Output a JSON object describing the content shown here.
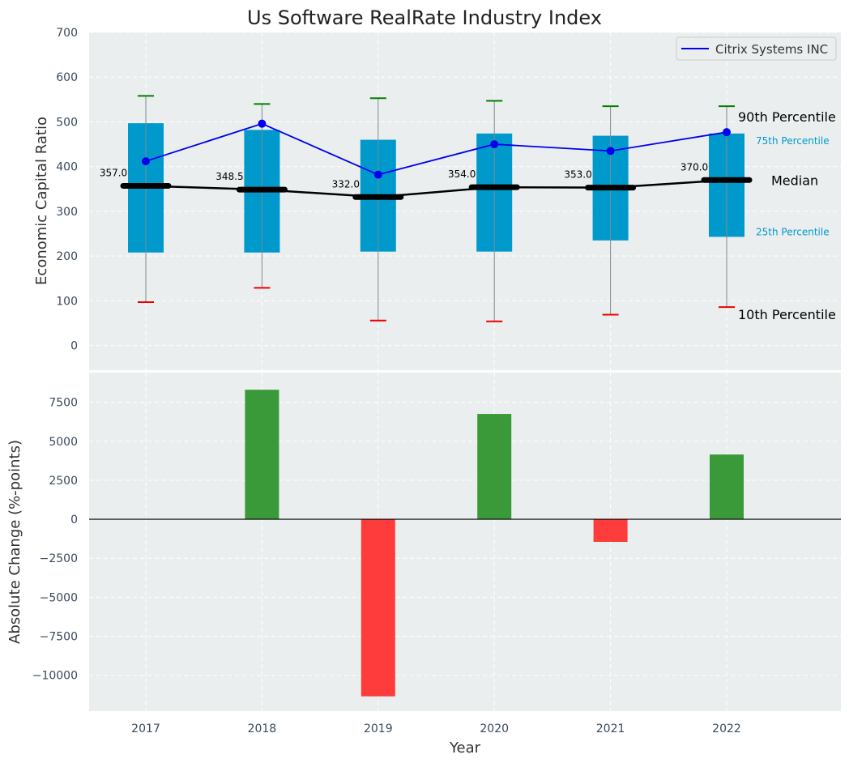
{
  "chart_data": [
    {
      "type": "box",
      "title": "Us Software RealRate Industry Index",
      "ylabel": "Economic Capital Ratio",
      "ylim": [
        -55,
        700
      ],
      "yticks": [
        0,
        100,
        200,
        300,
        400,
        500,
        600,
        700
      ],
      "categories": [
        "2017",
        "2018",
        "2019",
        "2020",
        "2021",
        "2022"
      ],
      "p10": [
        97,
        129,
        56,
        54,
        69,
        86
      ],
      "p25": [
        208,
        208,
        210,
        210,
        235,
        243
      ],
      "median": [
        357.0,
        348.5,
        332.0,
        354.0,
        353.0,
        370.0
      ],
      "median_labels": [
        "357.0",
        "348.5",
        "332.0",
        "354.0",
        "353.0",
        "370.0"
      ],
      "p75": [
        497,
        482,
        460,
        474,
        469,
        474
      ],
      "p90": [
        558,
        540,
        553,
        547,
        535,
        535
      ],
      "series": [
        {
          "name": "Citrix Systems INC",
          "color": "#0000ee",
          "values": [
            412,
            496,
            382,
            450,
            435,
            477
          ]
        }
      ],
      "legend": {
        "position": "top-right",
        "entries": [
          "Citrix Systems INC"
        ]
      },
      "annotations": {
        "p90": "90th Percentile",
        "p75": "75th Percentile",
        "median": "Median",
        "p25": "25th Percentile",
        "p10": "10th Percentile"
      },
      "colors": {
        "box": "#0099cc",
        "median": "#000000",
        "p90_cap": "#008000",
        "p10_cap": "#ee0000",
        "percentile_text": "#0099cc"
      },
      "grid": true
    },
    {
      "type": "bar",
      "xlabel": "Year",
      "ylabel": "Absolute Change (%-points)",
      "ylim": [
        -12300,
        9400
      ],
      "yticks": [
        -10000,
        -7500,
        -5000,
        -2500,
        0,
        2500,
        5000,
        7500
      ],
      "ytick_labels": [
        "−10000",
        "−7500",
        "−5000",
        "−2500",
        "0",
        "2500",
        "5000",
        "7500"
      ],
      "categories": [
        "2017",
        "2018",
        "2019",
        "2020",
        "2021",
        "2022"
      ],
      "values": [
        0,
        8300,
        -11350,
        6750,
        -1450,
        4150
      ],
      "colors": {
        "positive": "#3a9a3a",
        "negative": "#ff3c3c"
      },
      "grid": true
    }
  ]
}
